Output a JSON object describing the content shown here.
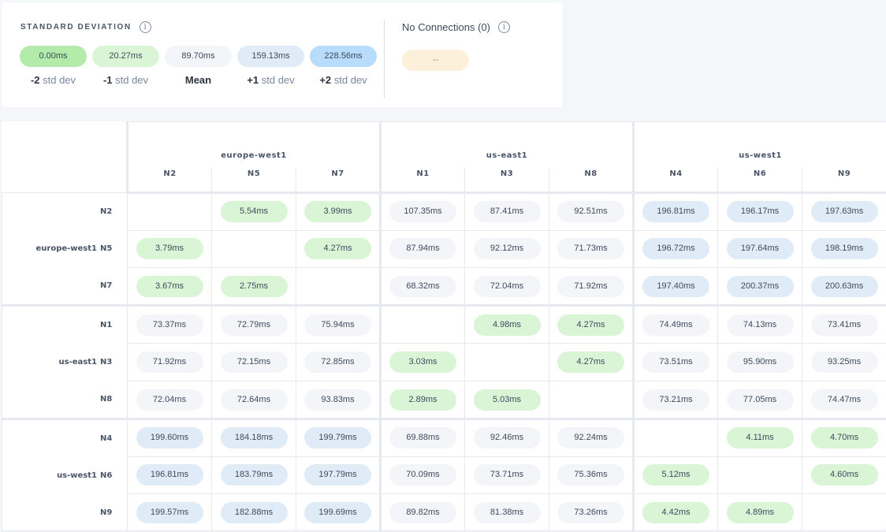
{
  "std_dev": {
    "title": "STANDARD DEVIATION",
    "info_icon": "info-icon",
    "levels": [
      {
        "value": "0.00ms",
        "sign": "-2",
        "label": "std dev",
        "color": "#b3ecaa"
      },
      {
        "value": "20.27ms",
        "sign": "-1",
        "label": "std dev",
        "color": "#daf5d6"
      },
      {
        "value": "89.70ms",
        "sign": "",
        "label": "Mean",
        "color": "#f3f5f9"
      },
      {
        "value": "159.13ms",
        "sign": "+1",
        "label": "std dev",
        "color": "#dfecf8"
      },
      {
        "value": "228.56ms",
        "sign": "+2",
        "label": "std dev",
        "color": "#b8dcfb"
      }
    ]
  },
  "no_connections": {
    "title": "No Connections (0)",
    "value": "--",
    "color": "#fdf0da"
  },
  "matrix": {
    "regions": [
      {
        "name": "europe-west1",
        "nodes": [
          "N2",
          "N5",
          "N7"
        ]
      },
      {
        "name": "us-east1",
        "nodes": [
          "N1",
          "N3",
          "N8"
        ]
      },
      {
        "name": "us-west1",
        "nodes": [
          "N4",
          "N6",
          "N9"
        ]
      }
    ],
    "rows": [
      [
        "",
        "5.54ms",
        "3.99ms",
        "107.35ms",
        "87.41ms",
        "92.51ms",
        "196.81ms",
        "196.17ms",
        "197.63ms"
      ],
      [
        "3.79ms",
        "",
        "4.27ms",
        "87.94ms",
        "92.12ms",
        "71.73ms",
        "196.72ms",
        "197.64ms",
        "198.19ms"
      ],
      [
        "3.67ms",
        "2.75ms",
        "",
        "68.32ms",
        "72.04ms",
        "71.92ms",
        "197.40ms",
        "200.37ms",
        "200.63ms"
      ],
      [
        "73.37ms",
        "72.79ms",
        "75.94ms",
        "",
        "4.98ms",
        "4.27ms",
        "74.49ms",
        "74.13ms",
        "73.41ms"
      ],
      [
        "71.92ms",
        "72.15ms",
        "72.85ms",
        "3.03ms",
        "",
        "4.27ms",
        "73.51ms",
        "95.90ms",
        "93.25ms"
      ],
      [
        "72.04ms",
        "72.64ms",
        "93.83ms",
        "2.89ms",
        "5.03ms",
        "",
        "73.21ms",
        "77.05ms",
        "74.47ms"
      ],
      [
        "199.60ms",
        "184.18ms",
        "199.79ms",
        "69.88ms",
        "92.46ms",
        "92.24ms",
        "",
        "4.11ms",
        "4.70ms"
      ],
      [
        "196.81ms",
        "183.79ms",
        "197.79ms",
        "70.09ms",
        "73.71ms",
        "75.36ms",
        "5.12ms",
        "",
        "4.60ms"
      ],
      [
        "199.57ms",
        "182.88ms",
        "199.69ms",
        "89.82ms",
        "81.38ms",
        "73.26ms",
        "4.42ms",
        "4.89ms",
        ""
      ]
    ]
  }
}
